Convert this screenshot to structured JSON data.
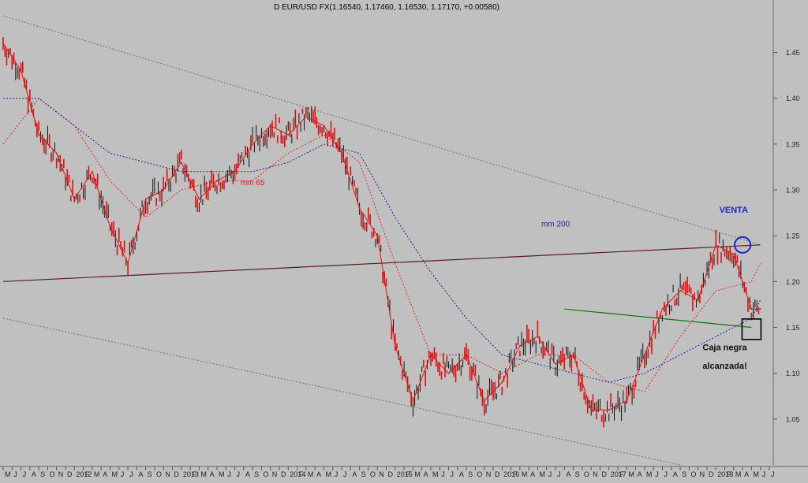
{
  "chart_data": {
    "type": "line",
    "title": "D EUR/USD FX(1.16540, 1.17460, 1.16530, 1.17170, +0.00580)",
    "xlabel": "",
    "ylabel": "",
    "ylim": [
      1.0,
      1.49
    ],
    "grid": false,
    "y_ticks": [
      "1.45",
      "1.40",
      "1.35",
      "1.30",
      "1.25",
      "1.20",
      "1.15",
      "1.10",
      "1.05"
    ],
    "x_tick_labels": [
      "M",
      "J",
      "J",
      "A",
      "S",
      "O",
      "N",
      "D",
      "2012",
      "F",
      "M",
      "A",
      "M",
      "J",
      "J",
      "A",
      "S",
      "O",
      "N",
      "D",
      "2013",
      "F",
      "M",
      "A",
      "M",
      "J",
      "J",
      "A",
      "S",
      "O",
      "N",
      "D",
      "2014",
      "F",
      "M",
      "A",
      "M",
      "J",
      "J",
      "A",
      "S",
      "O",
      "N",
      "D",
      "2015",
      "F",
      "M",
      "A",
      "M",
      "J",
      "J",
      "A",
      "S",
      "O",
      "N",
      "D",
      "2016",
      "F",
      "M",
      "A",
      "M",
      "J",
      "J",
      "A",
      "S",
      "O",
      "N",
      "D",
      "2017",
      "F",
      "M",
      "A",
      "M",
      "J",
      "J",
      "A",
      "S",
      "O",
      "N",
      "D",
      "2018",
      "F",
      "M",
      "A",
      "M",
      "J",
      "J"
    ],
    "price_series": {
      "name": "EUR/USD",
      "x": [
        "2011-05",
        "2011-07",
        "2011-09",
        "2011-11",
        "2012-01",
        "2012-03",
        "2012-05",
        "2012-07",
        "2012-09",
        "2012-11",
        "2013-01",
        "2013-03",
        "2013-05",
        "2013-07",
        "2013-09",
        "2013-11",
        "2014-01",
        "2014-03",
        "2014-05",
        "2014-07",
        "2014-09",
        "2014-11",
        "2015-01",
        "2015-03",
        "2015-05",
        "2015-07",
        "2015-09",
        "2015-11",
        "2016-01",
        "2016-03",
        "2016-05",
        "2016-07",
        "2016-09",
        "2016-11",
        "2017-01",
        "2017-03",
        "2017-05",
        "2017-07",
        "2017-09",
        "2017-11",
        "2018-01",
        "2018-03",
        "2018-05",
        "2018-06"
      ],
      "y": [
        1.46,
        1.43,
        1.36,
        1.34,
        1.29,
        1.32,
        1.26,
        1.22,
        1.29,
        1.3,
        1.33,
        1.29,
        1.31,
        1.32,
        1.35,
        1.37,
        1.36,
        1.38,
        1.37,
        1.34,
        1.28,
        1.25,
        1.13,
        1.07,
        1.12,
        1.1,
        1.12,
        1.07,
        1.09,
        1.13,
        1.14,
        1.11,
        1.12,
        1.06,
        1.06,
        1.07,
        1.12,
        1.17,
        1.19,
        1.18,
        1.24,
        1.23,
        1.17,
        1.17
      ]
    },
    "moving_averages": [
      {
        "name": "mm 65",
        "color": "#ee2222",
        "x": [
          "2011-05",
          "2011-09",
          "2012-01",
          "2012-05",
          "2012-09",
          "2013-01",
          "2013-05",
          "2013-09",
          "2014-01",
          "2014-05",
          "2014-09",
          "2015-01",
          "2015-05",
          "2015-09",
          "2016-01",
          "2016-05",
          "2016-09",
          "2017-01",
          "2017-05",
          "2017-09",
          "2018-01",
          "2018-05",
          "2018-06"
        ],
        "y": [
          1.35,
          1.4,
          1.37,
          1.31,
          1.27,
          1.3,
          1.31,
          1.31,
          1.34,
          1.36,
          1.33,
          1.22,
          1.12,
          1.12,
          1.1,
          1.12,
          1.12,
          1.09,
          1.08,
          1.14,
          1.19,
          1.2,
          1.22
        ]
      },
      {
        "name": "mm 200",
        "color": "#222299",
        "x": [
          "2011-05",
          "2011-09",
          "2012-01",
          "2012-05",
          "2012-09",
          "2013-01",
          "2013-05",
          "2013-09",
          "2014-01",
          "2014-05",
          "2014-09",
          "2015-01",
          "2015-05",
          "2015-09",
          "2016-01",
          "2016-05",
          "2016-09",
          "2017-01",
          "2017-05",
          "2017-09",
          "2018-01",
          "2018-05",
          "2018-06"
        ],
        "y": [
          1.4,
          1.4,
          1.37,
          1.34,
          1.33,
          1.32,
          1.32,
          1.32,
          1.33,
          1.35,
          1.34,
          1.27,
          1.21,
          1.16,
          1.12,
          1.11,
          1.1,
          1.09,
          1.1,
          1.12,
          1.14,
          1.16,
          1.18
        ]
      }
    ],
    "trendlines": [
      {
        "name": "upper-channel",
        "color": "#707070",
        "dashed": true,
        "x": [
          "2011-05",
          "2018-06"
        ],
        "y": [
          1.49,
          1.24
        ]
      },
      {
        "name": "lower-channel",
        "color": "#707070",
        "dashed": true,
        "x": [
          "2011-05",
          "2017-09"
        ],
        "y": [
          1.16,
          1.0
        ]
      },
      {
        "name": "long-support-resistance",
        "color": "#5a1a1a",
        "dashed": false,
        "x": [
          "2011-05",
          "2018-06"
        ],
        "y": [
          1.2,
          1.24
        ]
      },
      {
        "name": "green-neckline",
        "color": "#117711",
        "dashed": false,
        "x": [
          "2016-08",
          "2018-05"
        ],
        "y": [
          1.17,
          1.15
        ]
      }
    ],
    "annotations": [
      {
        "text": "VENTA",
        "color": "#2222cc",
        "x": "2018-03",
        "y": 1.275
      },
      {
        "text": "mm 200",
        "color": "#222299",
        "x": "2016-07",
        "y": 1.26
      },
      {
        "text": "mm 65",
        "color": "#cc2222",
        "x": "2013-09",
        "y": 1.305
      },
      {
        "text": "Caja negra",
        "color": "#111111",
        "x": "2018-02",
        "y": 1.125
      },
      {
        "text": "alcanzada!",
        "color": "#111111",
        "x": "2018-02",
        "y": 1.105
      }
    ],
    "markers": [
      {
        "shape": "circle",
        "color": "#2222cc",
        "x": "2018-04",
        "y": 1.24
      },
      {
        "shape": "square",
        "color": "#000000",
        "x": "2018-05",
        "y": 1.148
      }
    ]
  }
}
